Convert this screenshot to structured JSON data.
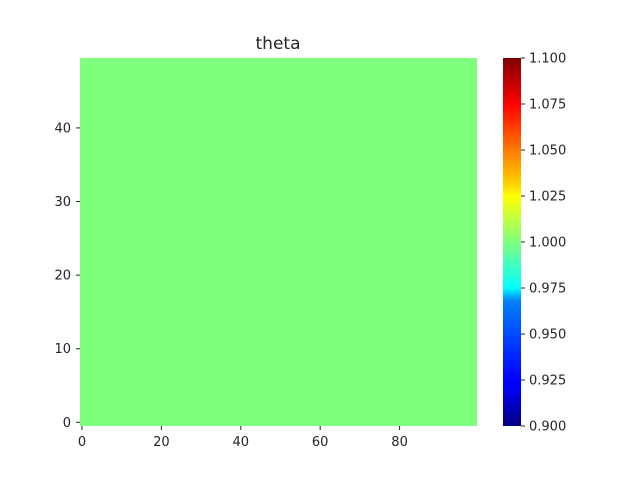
{
  "chart_data": {
    "type": "heatmap",
    "title": "theta",
    "xlabel": "",
    "ylabel": "",
    "xlim": [
      0,
      99
    ],
    "ylim": [
      0,
      49
    ],
    "x_ticks": [
      0,
      20,
      40,
      60,
      80
    ],
    "y_ticks": [
      0,
      10,
      20,
      30,
      40
    ],
    "grid": false,
    "field": {
      "description": "uniform field",
      "value": 1.0,
      "shape": [
        50,
        100
      ]
    },
    "colorbar": {
      "colormap": "jet",
      "vmin": 0.9,
      "vmax": 1.1,
      "ticks": [
        "0.900",
        "0.925",
        "0.950",
        "0.975",
        "1.000",
        "1.025",
        "1.050",
        "1.075",
        "1.100"
      ],
      "placement": "right"
    }
  },
  "colors": {
    "field_fill": "#80ff7f",
    "text": "#262626",
    "tick": "#262626"
  }
}
